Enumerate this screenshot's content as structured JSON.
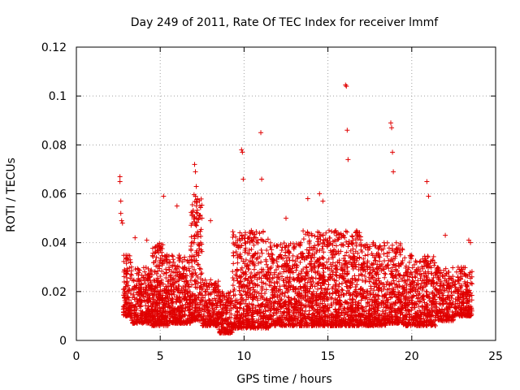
{
  "chart_data": {
    "type": "scatter",
    "title": "Day 249 of 2011, Rate Of TEC Index for receiver lmmf",
    "xlabel": "GPS time / hours",
    "ylabel": "ROTI / TECUs",
    "xlim": [
      0,
      25
    ],
    "ylim": [
      0,
      0.12
    ],
    "xticks": [
      "0",
      "5",
      "10",
      "15",
      "20",
      "25"
    ],
    "yticks": [
      "0",
      "0.02",
      "0.04",
      "0.06",
      "0.08",
      "0.1",
      "0.12"
    ],
    "grid": true,
    "marker": "plus",
    "marker_color": "#e00000",
    "series": [
      {
        "name": "",
        "x": [
          2.6,
          2.6,
          2.65,
          2.65,
          2.7,
          2.75,
          7.05,
          7.1,
          7.15,
          9.85,
          9.9,
          9.95,
          11.0,
          11.05,
          16.05,
          16.1,
          16.15,
          16.2,
          18.75,
          18.8,
          18.85,
          18.9,
          20.9,
          21.0,
          14.5,
          14.7,
          13.8,
          12.5,
          5.2,
          6.0,
          8.0,
          3.5,
          4.2,
          23.4,
          23.5,
          22.0
        ],
        "y": [
          0.067,
          0.065,
          0.057,
          0.052,
          0.049,
          0.048,
          0.072,
          0.069,
          0.063,
          0.078,
          0.077,
          0.066,
          0.085,
          0.066,
          0.1045,
          0.104,
          0.086,
          0.074,
          0.089,
          0.087,
          0.077,
          0.069,
          0.065,
          0.059,
          0.06,
          0.057,
          0.058,
          0.05,
          0.059,
          0.055,
          0.049,
          0.042,
          0.041,
          0.041,
          0.04,
          0.043
        ]
      }
    ],
    "cloud": [
      {
        "x0": 2.8,
        "x1": 3.3,
        "ymin": 0.01,
        "ymax": 0.035,
        "n": 120
      },
      {
        "x0": 3.3,
        "x1": 4.5,
        "ymin": 0.007,
        "ymax": 0.03,
        "n": 260
      },
      {
        "x0": 4.5,
        "x1": 5.5,
        "ymin": 0.006,
        "ymax": 0.04,
        "n": 300
      },
      {
        "x0": 5.5,
        "x1": 6.8,
        "ymin": 0.007,
        "ymax": 0.035,
        "n": 320
      },
      {
        "x0": 6.8,
        "x1": 7.5,
        "ymin": 0.008,
        "ymax": 0.06,
        "n": 200
      },
      {
        "x0": 7.5,
        "x1": 8.5,
        "ymin": 0.006,
        "ymax": 0.025,
        "n": 200
      },
      {
        "x0": 8.5,
        "x1": 9.3,
        "ymin": 0.003,
        "ymax": 0.02,
        "n": 160
      },
      {
        "x0": 9.3,
        "x1": 11.5,
        "ymin": 0.005,
        "ymax": 0.045,
        "n": 520
      },
      {
        "x0": 11.5,
        "x1": 13.5,
        "ymin": 0.006,
        "ymax": 0.04,
        "n": 480
      },
      {
        "x0": 13.5,
        "x1": 15.5,
        "ymin": 0.006,
        "ymax": 0.045,
        "n": 520
      },
      {
        "x0": 15.5,
        "x1": 17.0,
        "ymin": 0.006,
        "ymax": 0.045,
        "n": 420
      },
      {
        "x0": 17.0,
        "x1": 18.5,
        "ymin": 0.006,
        "ymax": 0.04,
        "n": 360
      },
      {
        "x0": 18.5,
        "x1": 19.5,
        "ymin": 0.007,
        "ymax": 0.04,
        "n": 240
      },
      {
        "x0": 19.5,
        "x1": 21.5,
        "ymin": 0.006,
        "ymax": 0.035,
        "n": 440
      },
      {
        "x0": 21.5,
        "x1": 22.5,
        "ymin": 0.008,
        "ymax": 0.03,
        "n": 180
      },
      {
        "x0": 22.5,
        "x1": 23.6,
        "ymin": 0.01,
        "ymax": 0.03,
        "n": 200
      }
    ]
  }
}
